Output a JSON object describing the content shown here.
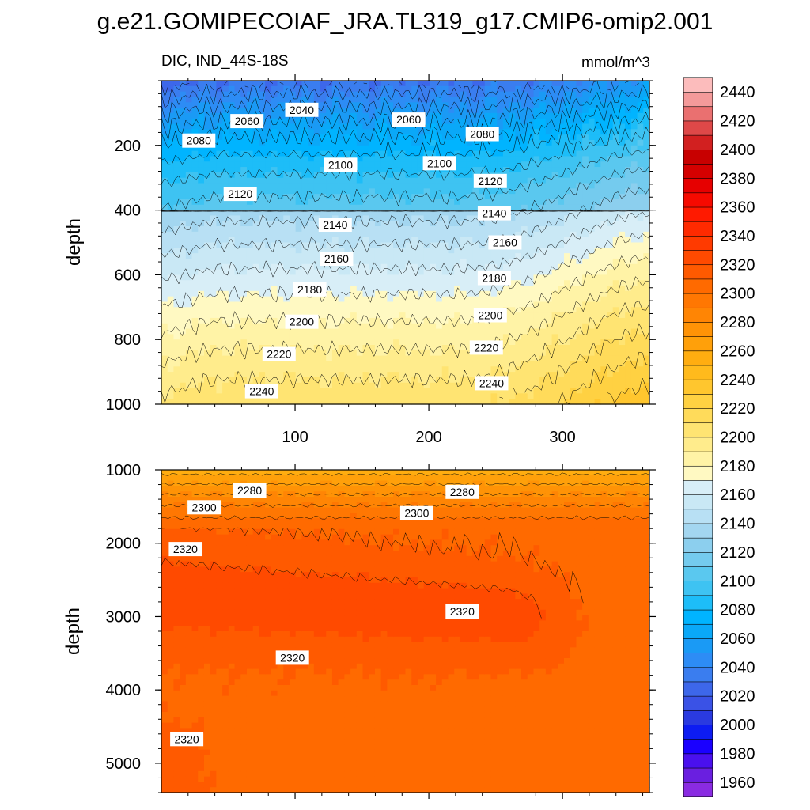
{
  "figure": {
    "title": "g.e21.GOMIPECOIAF_JRA.TL319_g17.CMIP6-omip2.001",
    "panel_left_label": "DIC, IND_44S-18S",
    "units": "mmol/m^3"
  },
  "chart_data": [
    {
      "type": "heatmap",
      "name": "upper",
      "ylabel": "depth",
      "xlim": [
        0,
        365
      ],
      "ylim": [
        1000,
        0
      ],
      "y_inverted": true,
      "x_ticks": [
        100,
        200,
        300
      ],
      "x_tick_labels": [
        "100",
        "200",
        "300"
      ],
      "y_ticks": [
        200,
        400,
        600,
        800,
        1000
      ],
      "y_tick_labels": [
        "200",
        "400",
        "600",
        "800",
        "1000"
      ],
      "contour_interval": 10,
      "contour_labels": [
        {
          "text": "2040",
          "x": 105,
          "y": 90
        },
        {
          "text": "2060",
          "x": 64,
          "y": 125
        },
        {
          "text": "2060",
          "x": 185,
          "y": 120
        },
        {
          "text": "2080",
          "x": 28,
          "y": 185
        },
        {
          "text": "2080",
          "x": 240,
          "y": 165
        },
        {
          "text": "2100",
          "x": 134,
          "y": 260
        },
        {
          "text": "2100",
          "x": 208,
          "y": 255
        },
        {
          "text": "2120",
          "x": 59,
          "y": 350
        },
        {
          "text": "2120",
          "x": 246,
          "y": 310
        },
        {
          "text": "2140",
          "x": 130,
          "y": 445
        },
        {
          "text": "2140",
          "x": 249,
          "y": 410
        },
        {
          "text": "2160",
          "x": 131,
          "y": 550
        },
        {
          "text": "2160",
          "x": 257,
          "y": 500
        },
        {
          "text": "2180",
          "x": 111,
          "y": 645
        },
        {
          "text": "2180",
          "x": 249,
          "y": 610
        },
        {
          "text": "2200",
          "x": 105,
          "y": 745
        },
        {
          "text": "2200",
          "x": 246,
          "y": 725
        },
        {
          "text": "2220",
          "x": 88,
          "y": 845
        },
        {
          "text": "2220",
          "x": 243,
          "y": 825
        },
        {
          "text": "2240",
          "x": 75,
          "y": 960
        },
        {
          "text": "2240",
          "x": 247,
          "y": 935
        }
      ]
    },
    {
      "type": "heatmap",
      "name": "lower",
      "ylabel": "depth",
      "xlim": [
        0,
        365
      ],
      "ylim": [
        5400,
        1000
      ],
      "y_inverted": true,
      "y_ticks": [
        1000,
        2000,
        3000,
        4000,
        5000
      ],
      "y_tick_labels": [
        "1000",
        "2000",
        "3000",
        "4000",
        "5000"
      ],
      "contour_interval": 10,
      "contour_labels": [
        {
          "text": "2280",
          "x": 66,
          "y": 1280
        },
        {
          "text": "2280",
          "x": 225,
          "y": 1300
        },
        {
          "text": "2300",
          "x": 32,
          "y": 1510
        },
        {
          "text": "2300",
          "x": 191,
          "y": 1590
        },
        {
          "text": "2320",
          "x": 18,
          "y": 2080
        },
        {
          "text": "2320",
          "x": 225,
          "y": 2930
        },
        {
          "text": "2320",
          "x": 98,
          "y": 3560
        },
        {
          "text": "2320",
          "x": 19,
          "y": 4670
        }
      ]
    }
  ],
  "colorbar": {
    "min": 1950,
    "max": 2450,
    "step": 10,
    "tick_values": [
      1960,
      1980,
      2000,
      2020,
      2040,
      2060,
      2080,
      2100,
      2120,
      2140,
      2160,
      2180,
      2200,
      2220,
      2240,
      2260,
      2280,
      2300,
      2320,
      2340,
      2360,
      2380,
      2400,
      2420,
      2440
    ],
    "tick_labels": [
      "1960",
      "1980",
      "2000",
      "2020",
      "2040",
      "2060",
      "2080",
      "2100",
      "2120",
      "2140",
      "2160",
      "2180",
      "2200",
      "2220",
      "2240",
      "2260",
      "2280",
      "2300",
      "2320",
      "2340",
      "2360",
      "2380",
      "2400",
      "2420",
      "2440"
    ],
    "colors": [
      "#8a2be2",
      "#6a1fe0",
      "#4a10ee",
      "#1a00ff",
      "#0d1cf2",
      "#2a3ae0",
      "#3a52e6",
      "#3d67ea",
      "#3a7def",
      "#2d8cf5",
      "#1a9af5",
      "#0aa8f8",
      "#00b4ff",
      "#1dbdf8",
      "#3ec3f2",
      "#5ac8ef",
      "#74cbee",
      "#8ccfee",
      "#a3d6f0",
      "#b8e0f4",
      "#c9e8f5",
      "#d8eef7",
      "#fff9c2",
      "#fff3a6",
      "#ffec8c",
      "#ffe472",
      "#ffdb5a",
      "#ffd142",
      "#ffc62e",
      "#ffba1c",
      "#ffad10",
      "#ffa00a",
      "#ff9306",
      "#ff8504",
      "#ff7702",
      "#ff6a00",
      "#ff5a00",
      "#ff4a00",
      "#ff3a00",
      "#ff2a00",
      "#ff1a00",
      "#f60a00",
      "#e60000",
      "#d40000",
      "#c80000",
      "#d22020",
      "#de4848",
      "#ea7070",
      "#f49a9a",
      "#fcbcbc"
    ]
  }
}
